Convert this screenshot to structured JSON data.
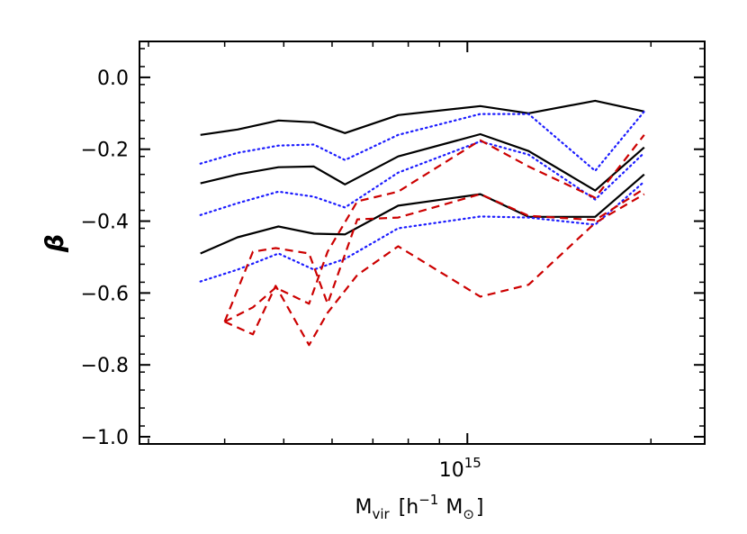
{
  "chart_data": {
    "type": "line",
    "xlabel": {
      "main": "M",
      "sub": "vir",
      "bracket_open": "[",
      "unit_h": "h",
      "unit_exp": "−1",
      "unit_m": "M",
      "unit_sun": "⊙",
      "bracket_close": "]"
    },
    "ylabel": "β",
    "x_scale": "log",
    "xlim": [
      290000000000000.0,
      2450000000000000.0
    ],
    "ylim": [
      -1.02,
      0.1
    ],
    "x_ticks": [
      {
        "value": 1000000000000000.0,
        "base": "10",
        "exp": "15"
      }
    ],
    "y_ticks": [
      {
        "value": 0.0,
        "label": "0.0"
      },
      {
        "value": -0.2,
        "label": "−0.2"
      },
      {
        "value": -0.4,
        "label": "−0.4"
      },
      {
        "value": -0.6,
        "label": "−0.6"
      },
      {
        "value": -0.8,
        "label": "−0.8"
      },
      {
        "value": -1.0,
        "label": "−1.0"
      }
    ],
    "grid": false,
    "series": [
      {
        "style": "solid",
        "color": "#000000",
        "x": [
          365000000000000.0,
          420000000000000.0,
          490000000000000.0,
          560000000000000.0,
          630000000000000.0,
          770000000000000.0,
          1050000000000000.0,
          1260000000000000.0,
          1620000000000000.0,
          1950000000000000.0
        ],
        "y": [
          -0.16,
          -0.145,
          -0.12,
          -0.125,
          -0.155,
          -0.105,
          -0.08,
          -0.1,
          -0.065,
          -0.095
        ]
      },
      {
        "style": "solid",
        "color": "#000000",
        "x": [
          365000000000000.0,
          420000000000000.0,
          490000000000000.0,
          560000000000000.0,
          630000000000000.0,
          770000000000000.0,
          1050000000000000.0,
          1260000000000000.0,
          1620000000000000.0,
          1950000000000000.0
        ],
        "y": [
          -0.295,
          -0.27,
          -0.25,
          -0.248,
          -0.298,
          -0.22,
          -0.158,
          -0.205,
          -0.315,
          -0.195
        ]
      },
      {
        "style": "solid",
        "color": "#000000",
        "x": [
          365000000000000.0,
          420000000000000.0,
          490000000000000.0,
          560000000000000.0,
          630000000000000.0,
          770000000000000.0,
          1050000000000000.0,
          1260000000000000.0,
          1620000000000000.0,
          1950000000000000.0
        ],
        "y": [
          -0.49,
          -0.445,
          -0.415,
          -0.435,
          -0.437,
          -0.357,
          -0.325,
          -0.388,
          -0.388,
          -0.27
        ]
      },
      {
        "style": "dotted",
        "color": "#1c1cff",
        "x": [
          365000000000000.0,
          420000000000000.0,
          490000000000000.0,
          560000000000000.0,
          630000000000000.0,
          770000000000000.0,
          1050000000000000.0,
          1260000000000000.0,
          1620000000000000.0,
          1950000000000000.0
        ],
        "y": [
          -0.24,
          -0.21,
          -0.19,
          -0.187,
          -0.23,
          -0.16,
          -0.102,
          -0.102,
          -0.26,
          -0.095
        ]
      },
      {
        "style": "dotted",
        "color": "#1c1cff",
        "x": [
          365000000000000.0,
          420000000000000.0,
          490000000000000.0,
          560000000000000.0,
          630000000000000.0,
          770000000000000.0,
          1050000000000000.0,
          1260000000000000.0,
          1620000000000000.0,
          1950000000000000.0
        ],
        "y": [
          -0.383,
          -0.35,
          -0.318,
          -0.332,
          -0.362,
          -0.265,
          -0.178,
          -0.215,
          -0.34,
          -0.21
        ]
      },
      {
        "style": "dotted",
        "color": "#1c1cff",
        "x": [
          365000000000000.0,
          420000000000000.0,
          490000000000000.0,
          560000000000000.0,
          630000000000000.0,
          770000000000000.0,
          1050000000000000.0,
          1260000000000000.0,
          1620000000000000.0,
          1950000000000000.0
        ],
        "y": [
          -0.568,
          -0.535,
          -0.49,
          -0.535,
          -0.505,
          -0.42,
          -0.387,
          -0.39,
          -0.41,
          -0.29
        ]
      },
      {
        "style": "dashed",
        "color": "#cc0000",
        "x": [
          400000000000000.0,
          445000000000000.0,
          485000000000000.0,
          550000000000000.0,
          590000000000000.0,
          660000000000000.0,
          770000000000000.0,
          1050000000000000.0,
          1260000000000000.0,
          1620000000000000.0,
          1950000000000000.0
        ],
        "y": [
          -0.68,
          -0.64,
          -0.585,
          -0.63,
          -0.485,
          -0.345,
          -0.318,
          -0.175,
          -0.248,
          -0.335,
          -0.16
        ]
      },
      {
        "style": "dashed",
        "color": "#cc0000",
        "x": [
          400000000000000.0,
          445000000000000.0,
          485000000000000.0,
          550000000000000.0,
          590000000000000.0,
          660000000000000.0,
          770000000000000.0,
          1050000000000000.0,
          1260000000000000.0,
          1620000000000000.0,
          1950000000000000.0
        ],
        "y": [
          -0.68,
          -0.485,
          -0.475,
          -0.49,
          -0.63,
          -0.395,
          -0.39,
          -0.325,
          -0.385,
          -0.397,
          -0.31
        ]
      },
      {
        "style": "dashed",
        "color": "#cc0000",
        "x": [
          400000000000000.0,
          445000000000000.0,
          485000000000000.0,
          550000000000000.0,
          590000000000000.0,
          660000000000000.0,
          770000000000000.0,
          1050000000000000.0,
          1260000000000000.0,
          1620000000000000.0,
          1950000000000000.0
        ],
        "y": [
          -0.68,
          -0.715,
          -0.58,
          -0.745,
          -0.655,
          -0.55,
          -0.47,
          -0.61,
          -0.577,
          -0.405,
          -0.325
        ]
      }
    ]
  }
}
